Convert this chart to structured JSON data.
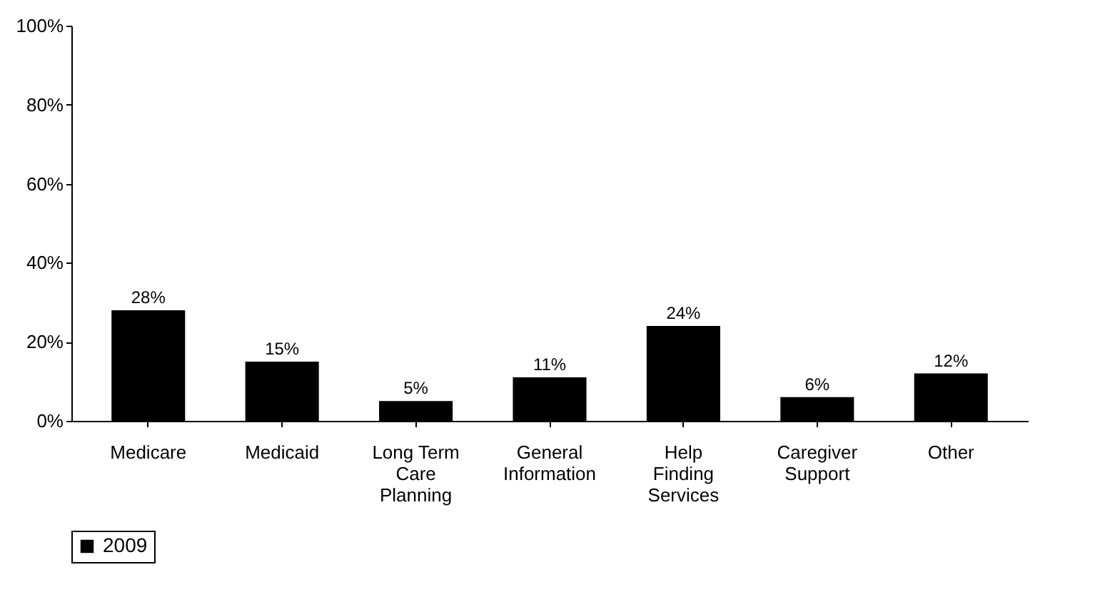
{
  "chart_data": {
    "type": "bar",
    "categories": [
      "Medicare",
      "Medicaid",
      "Long Term Care Planning",
      "General Information",
      "Help Finding Services",
      "Caregiver Support",
      "Other"
    ],
    "series": [
      {
        "name": "2009",
        "color": "#000000",
        "values": [
          28,
          15,
          5,
          11,
          24,
          6,
          12
        ],
        "value_labels": [
          "28%",
          "15%",
          "5%",
          "11%",
          "24%",
          "6%",
          "12%"
        ]
      }
    ],
    "ylim": [
      0,
      100
    ],
    "yticks": [
      {
        "value": 0,
        "label": "0%"
      },
      {
        "value": 20,
        "label": "20%"
      },
      {
        "value": 40,
        "label": "40%"
      },
      {
        "value": 60,
        "label": "60%"
      },
      {
        "value": 80,
        "label": "80%"
      },
      {
        "value": 100,
        "label": "100%"
      }
    ],
    "grid": false,
    "legend": "bottom"
  }
}
